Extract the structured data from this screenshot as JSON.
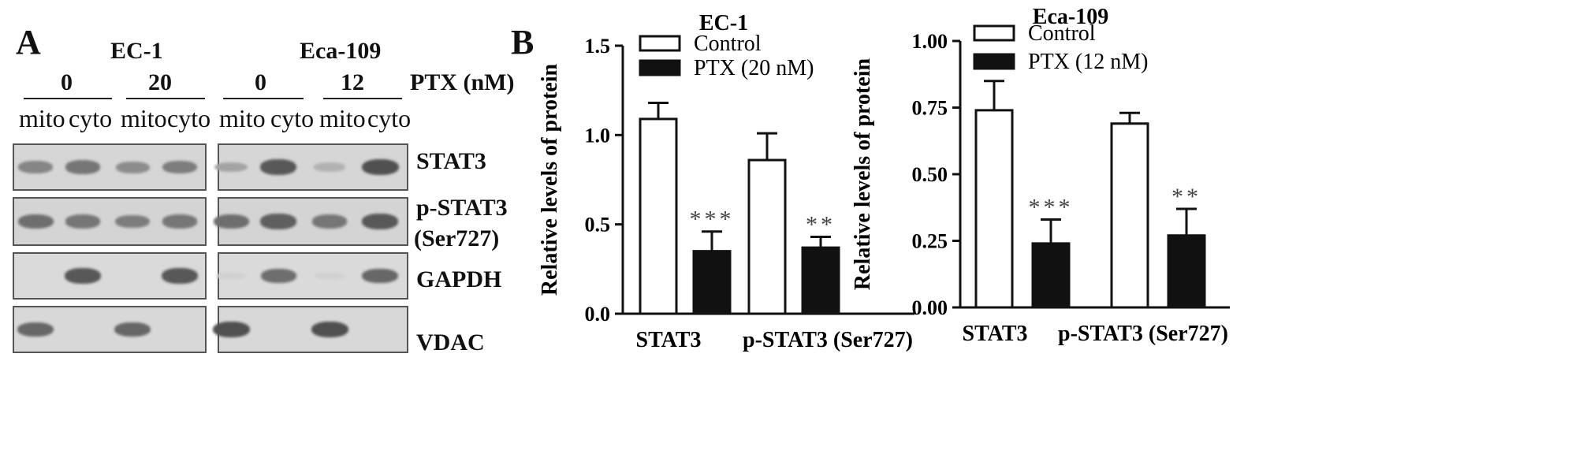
{
  "panel_a": {
    "letter": "A",
    "cell_lines": [
      "EC-1",
      "Eca-109"
    ],
    "concentrations": [
      "0",
      "20",
      "0",
      "12"
    ],
    "treatment_label": "PTX (nM)",
    "lanes": [
      "mito",
      "cyto",
      "mito",
      "cyto",
      "mito",
      "cyto",
      "mito",
      "cyto"
    ],
    "proteins": [
      "STAT3",
      "p-STAT3",
      "(Ser727)",
      "GAPDH",
      "VDAC"
    ],
    "band_intensity": {
      "STAT3": [
        0.55,
        0.65,
        0.5,
        0.6,
        0.35,
        0.85,
        0.25,
        0.9
      ],
      "p-STAT3": [
        0.7,
        0.65,
        0.6,
        0.65,
        0.7,
        0.8,
        0.65,
        0.85
      ],
      "GAPDH": [
        0.0,
        0.85,
        0.0,
        0.85,
        0.05,
        0.7,
        0.05,
        0.75
      ],
      "VDAC": [
        0.75,
        0.0,
        0.75,
        0.0,
        0.9,
        0.0,
        0.9,
        0.0
      ]
    }
  },
  "panel_b": {
    "letter": "B"
  },
  "chart_data": [
    {
      "type": "bar",
      "title": "EC-1",
      "ylabel": "Relative levels of protein",
      "categories": [
        "STAT3",
        "p-STAT3 (Ser727)"
      ],
      "ylim": [
        0,
        1.5
      ],
      "yticks": [
        "0.0",
        "0.5",
        "1.0",
        "1.5"
      ],
      "series": [
        {
          "name": "Control",
          "values": [
            1.09,
            0.86
          ],
          "errors": [
            0.09,
            0.15
          ],
          "color": "#ffffff"
        },
        {
          "name": "PTX (20 nM)",
          "values": [
            0.35,
            0.37
          ],
          "errors": [
            0.11,
            0.06
          ],
          "color": "#111111"
        }
      ],
      "significance": [
        "***",
        "**"
      ],
      "legend": "top-left"
    },
    {
      "type": "bar",
      "title": "Eca-109",
      "ylabel": "Relative levels of protein",
      "categories": [
        "STAT3",
        "p-STAT3 (Ser727)"
      ],
      "ylim": [
        0,
        1.0
      ],
      "yticks": [
        "0.00",
        "0.25",
        "0.50",
        "0.75",
        "1.00"
      ],
      "series": [
        {
          "name": "Control",
          "values": [
            0.74,
            0.69
          ],
          "errors": [
            0.11,
            0.04
          ],
          "color": "#ffffff"
        },
        {
          "name": "PTX (12 nM)",
          "values": [
            0.24,
            0.27
          ],
          "errors": [
            0.09,
            0.1
          ],
          "color": "#111111"
        }
      ],
      "significance": [
        "***",
        "**"
      ],
      "legend": "top-left"
    }
  ]
}
